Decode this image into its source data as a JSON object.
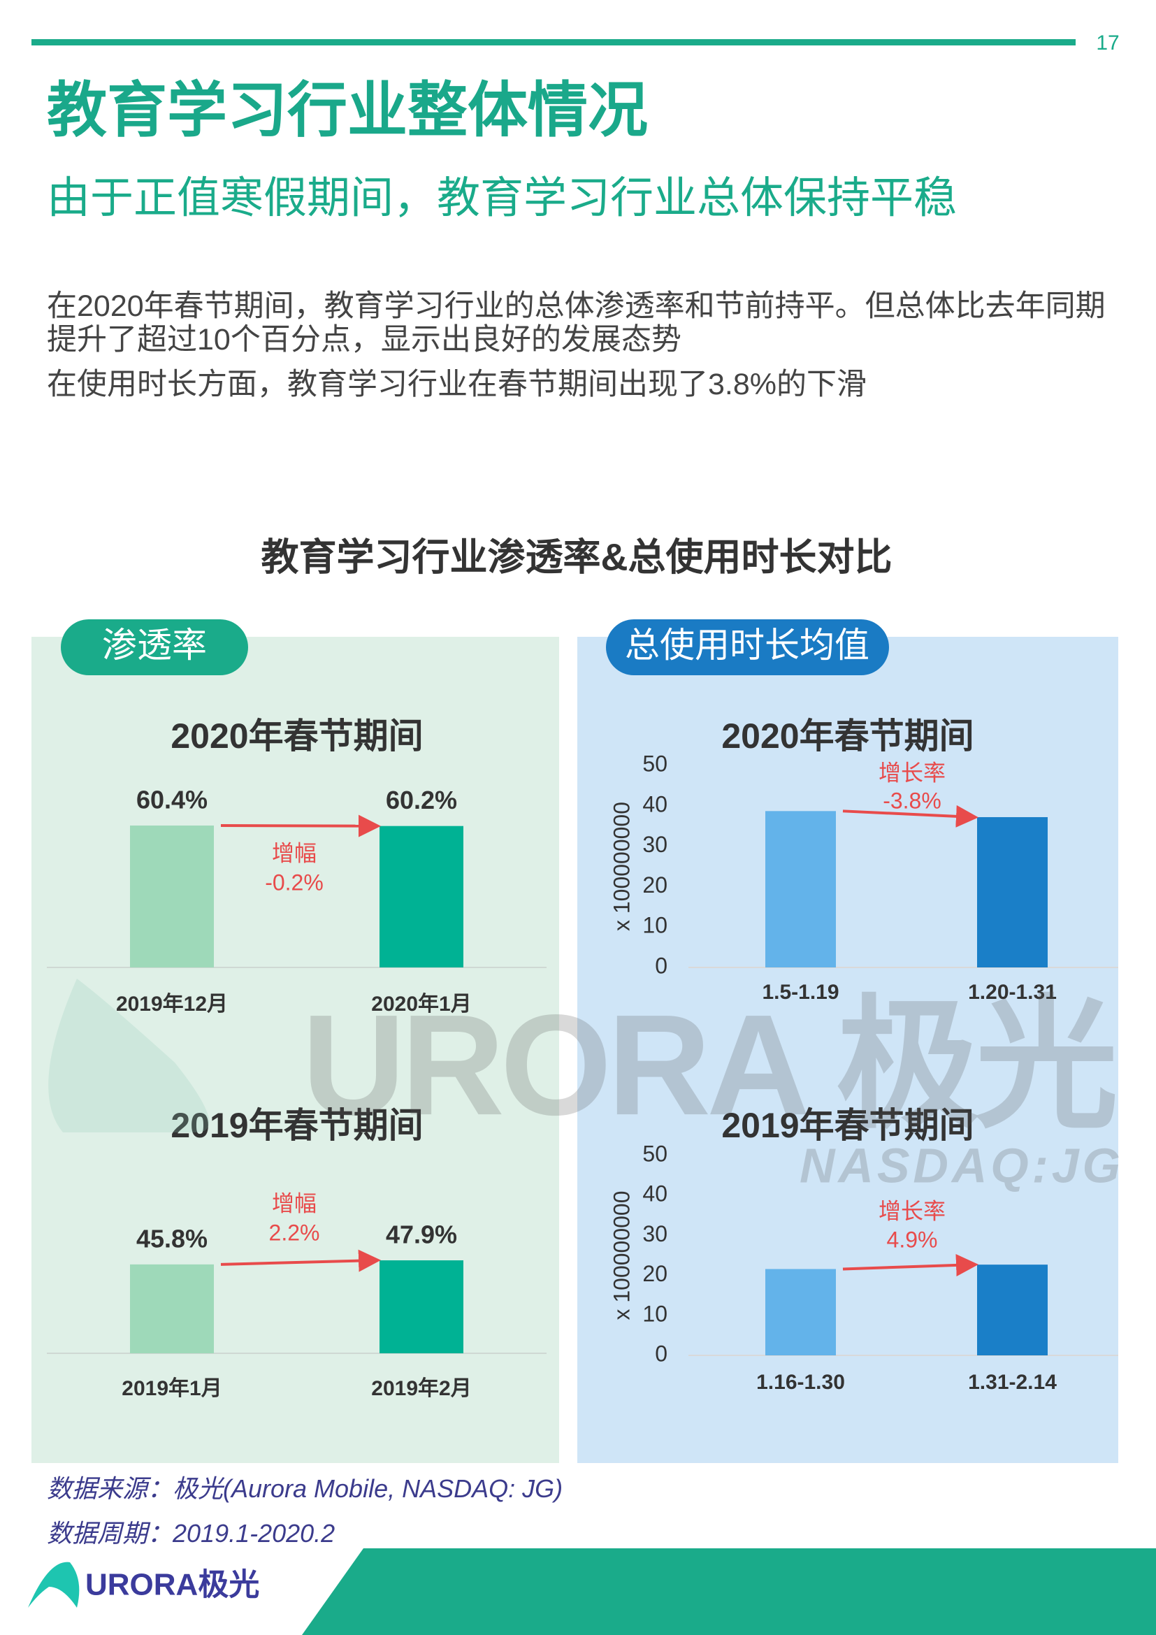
{
  "page_number": "17",
  "title": "教育学习行业整体情况",
  "subtitle": "由于正值寒假期间，教育学习行业总体保持平稳",
  "paragraphs": [
    "在2020年春节期间，教育学习行业的总体渗透率和节前持平。但总体比去年同期提升了超过10个百分点，显示出良好的发展态势",
    "在使用时长方面，教育学习行业在春节期间出现了3.8%的下滑"
  ],
  "section_title": "教育学习行业渗透率&总使用时长对比",
  "panel_labels": [
    "渗透率",
    "总使用时长均值"
  ],
  "chart_data": [
    {
      "type": "bar",
      "title": "2020年春节期间",
      "categories": [
        "2019年12月",
        "2020年1月"
      ],
      "values": [
        60.4,
        60.2
      ],
      "value_labels": [
        "60.4%",
        "60.2%"
      ],
      "colors": [
        "#9ed9b9",
        "#00b294"
      ],
      "annotation": [
        "增幅",
        "-0.2%"
      ]
    },
    {
      "type": "bar",
      "title": "2019年春节期间",
      "categories": [
        "2019年1月",
        "2019年2月"
      ],
      "values": [
        45.8,
        47.9
      ],
      "value_labels": [
        "45.8%",
        "47.9%"
      ],
      "colors": [
        "#9ed9b9",
        "#00b294"
      ],
      "annotation": [
        "增幅",
        "2.2%"
      ]
    },
    {
      "type": "bar",
      "title": "2020年春节期间",
      "ylabel": "x 100000000",
      "ylim": [
        0,
        50
      ],
      "yticks": [
        0,
        10,
        20,
        30,
        40,
        50
      ],
      "categories": [
        "1.5-1.19",
        "1.20-1.31"
      ],
      "values": [
        38.7,
        37.2
      ],
      "colors": [
        "#63b3ea",
        "#1a7fc8"
      ],
      "annotation": [
        "增长率",
        "-3.8%"
      ]
    },
    {
      "type": "bar",
      "title": "2019年春节期间",
      "ylabel": "x 100000000",
      "ylim": [
        0,
        50
      ],
      "yticks": [
        0,
        10,
        20,
        30,
        40,
        50
      ],
      "categories": [
        "1.16-1.30",
        "1.31-2.14"
      ],
      "values": [
        21.6,
        22.7
      ],
      "colors": [
        "#63b3ea",
        "#1a7fc8"
      ],
      "annotation": [
        "增长率",
        "4.9%"
      ]
    }
  ],
  "sources": [
    "数据来源：极光(Aurora Mobile, NASDAQ: JG)",
    "数据周期：2019.1-2020.2"
  ],
  "logo": "URORA极光",
  "watermark": [
    "URORA 极光",
    "NASDAQ:JG"
  ]
}
